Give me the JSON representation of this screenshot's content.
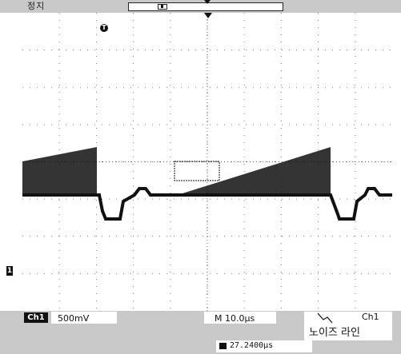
{
  "status": {
    "text": "정지"
  },
  "markers": {
    "trigger_time": "T",
    "channel": "1"
  },
  "footer": {
    "channel_badge": "Ch1",
    "volts_per_div": "500mV",
    "timebase": "M 10.0µs",
    "trigger_source": "Ch1",
    "note": "노이즈 라인",
    "horizontal_position": "27.2400µs"
  }
}
